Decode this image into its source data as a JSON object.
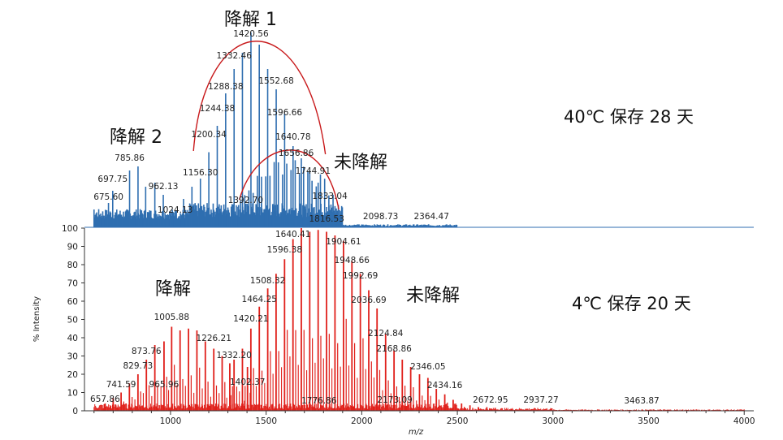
{
  "chart_data": [
    {
      "type": "line",
      "name": "",
      "condition_label": "40℃  保存 28 天",
      "color": "#2f6eb0",
      "annotations": [
        "降解 1",
        "降解 2",
        "未降解"
      ],
      "peak_labels": [
        675.6,
        697.75,
        785.86,
        962.13,
        1024.13,
        1156.3,
        1200.34,
        1244.38,
        1288.38,
        1332.46,
        1420.56,
        1552.68,
        1596.66,
        1640.78,
        1656.86,
        1744.91,
        1392.7,
        1833.04,
        1816.53,
        2098.73,
        2364.47
      ],
      "xlim": [
        550,
        4050
      ]
    },
    {
      "type": "line",
      "name": "",
      "condition_label": "4℃  保存 20 天",
      "color": "#e0201b",
      "annotations": [
        "降解",
        "未降解"
      ],
      "xlabel": "m/z",
      "ylabel": "% Intensity",
      "ylim": [
        0,
        100
      ],
      "yticks": [
        0,
        10,
        20,
        30,
        40,
        50,
        60,
        70,
        80,
        90,
        100
      ],
      "xticks": [
        1000,
        1500,
        2000,
        2500,
        3000,
        3500,
        4000
      ],
      "xlim": [
        550,
        4050
      ],
      "peak_labels": [
        657.86,
        741.59,
        829.73,
        873.76,
        965.96,
        1005.88,
        1226.21,
        1332.2,
        1402.37,
        1420.21,
        1464.25,
        1508.32,
        1596.38,
        1640.41,
        1776.86,
        1904.61,
        1948.66,
        1992.69,
        2036.69,
        2124.84,
        2168.86,
        2173.09,
        2346.05,
        2434.16,
        2672.95,
        2937.27,
        3463.87
      ]
    }
  ]
}
